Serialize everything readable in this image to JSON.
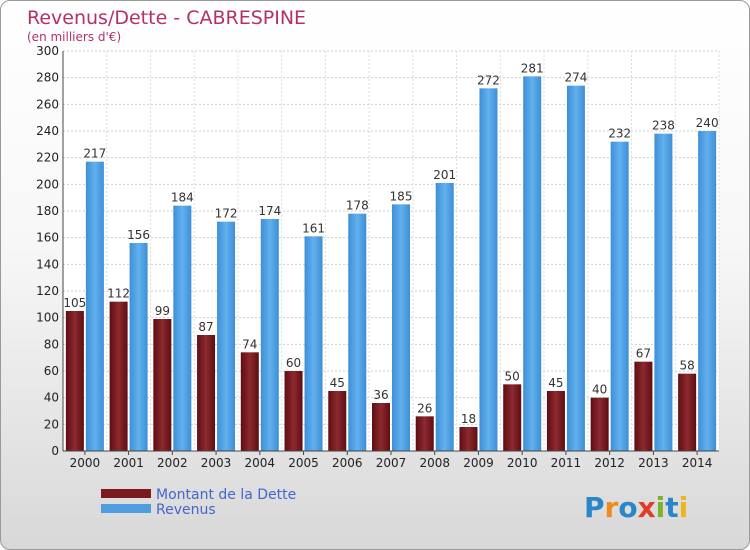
{
  "chart_data": {
    "type": "bar",
    "title": "Revenus/Dette - CABRESPINE",
    "subtitle": "(en milliers d'€)",
    "xlabel": "",
    "ylabel": "",
    "ylim": [
      0,
      300
    ],
    "yticks": [
      0,
      20,
      40,
      60,
      80,
      100,
      120,
      140,
      160,
      180,
      200,
      220,
      240,
      260,
      280,
      300
    ],
    "grid": true,
    "categories": [
      "2000",
      "2001",
      "2002",
      "2003",
      "2004",
      "2005",
      "2006",
      "2007",
      "2008",
      "2009",
      "2010",
      "2011",
      "2012",
      "2013",
      "2014"
    ],
    "series": [
      {
        "name": "Montant de la Dette",
        "color": "#7a1a1f",
        "values": [
          105,
          112,
          99,
          87,
          74,
          60,
          45,
          36,
          26,
          18,
          50,
          45,
          40,
          67,
          58
        ]
      },
      {
        "name": "Revenus",
        "color": "#4d9de0",
        "values": [
          217,
          156,
          184,
          172,
          174,
          161,
          178,
          185,
          201,
          272,
          281,
          274,
          232,
          238,
          240
        ]
      }
    ],
    "legend_position": "bottom-left"
  },
  "logo": {
    "letters": [
      "P",
      "r",
      "o",
      "x",
      "i",
      "t",
      "i"
    ],
    "colors": [
      "#2b86c9",
      "#f08a1d",
      "#2b86c9",
      "#e03c2a",
      "#7ab42d",
      "#2b86c9",
      "#f0b41d"
    ]
  }
}
